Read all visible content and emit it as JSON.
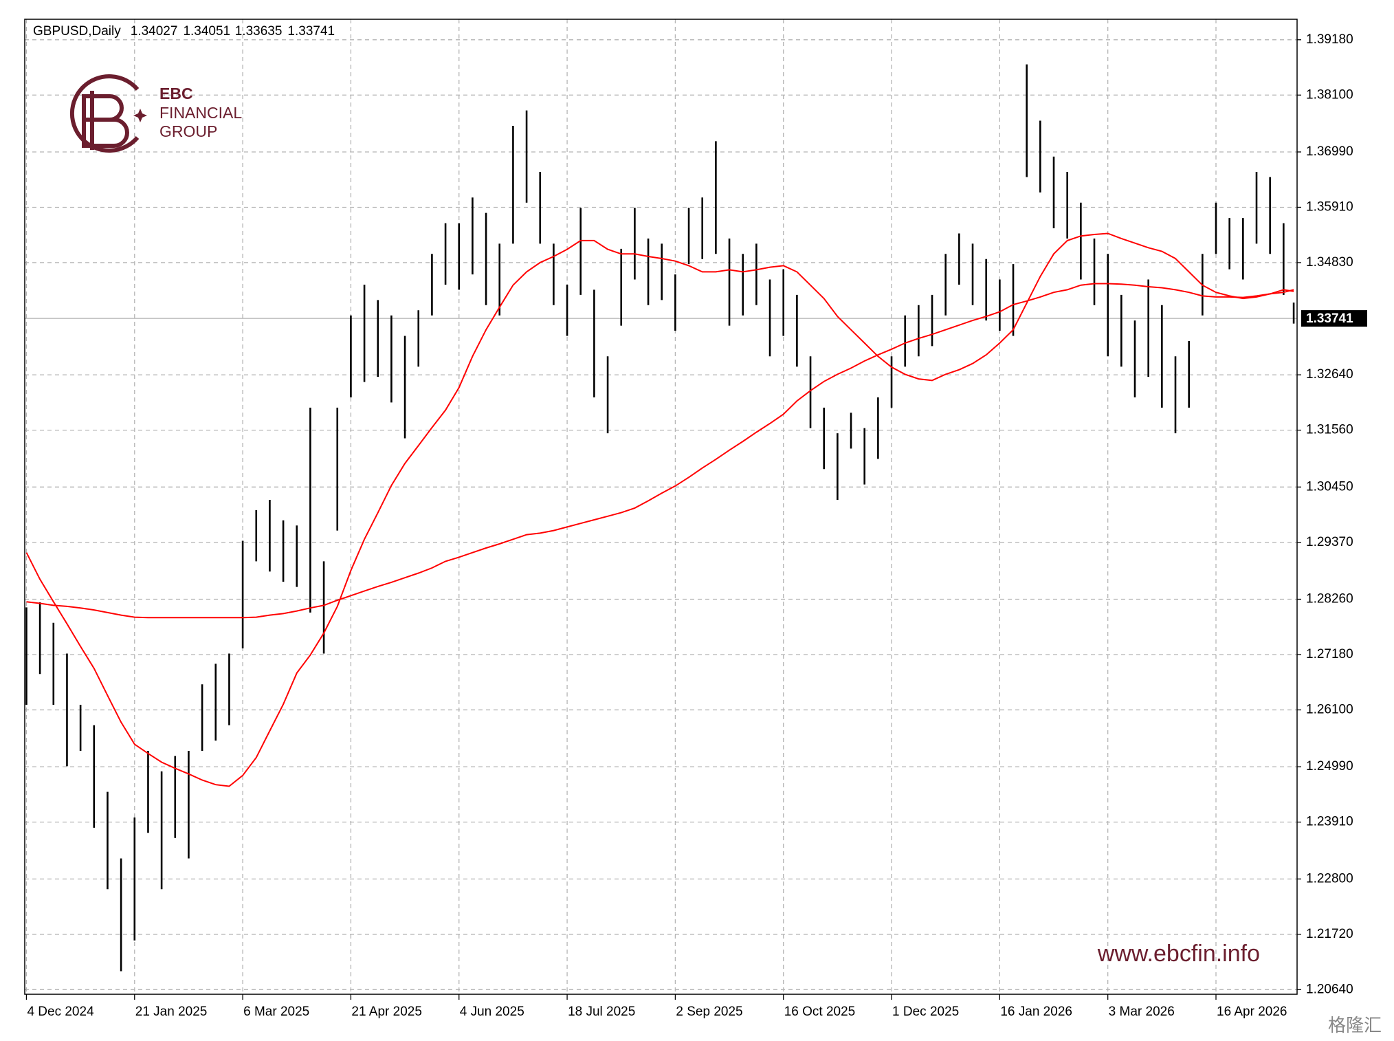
{
  "chart_data": {
    "type": "ohlc",
    "title": "GBPUSD,Daily",
    "last_ohlc": [
      1.34027,
      1.34051,
      1.33635,
      1.33741
    ],
    "last_price": 1.33741,
    "bar_color": "#000000",
    "grid": true,
    "grid_color": "#b4b4b4",
    "price_line_color": "#b4b4b4",
    "xlim": [
      -0.5,
      376
    ],
    "xticks": [
      {
        "value": 0,
        "label": "4 Dec 2024"
      },
      {
        "value": 32,
        "label": "21 Jan 2025"
      },
      {
        "value": 64,
        "label": "6 Mar 2025"
      },
      {
        "value": 96,
        "label": "21 Apr 2025"
      },
      {
        "value": 128,
        "label": "4 Jun 2025"
      },
      {
        "value": 160,
        "label": "18 Jul 2025"
      },
      {
        "value": 192,
        "label": "2 Sep 2025"
      },
      {
        "value": 224,
        "label": "16 Oct 2025"
      },
      {
        "value": 256,
        "label": "1 Dec 2025"
      },
      {
        "value": 288,
        "label": "16 Jan 2026"
      },
      {
        "value": 320,
        "label": "3 Mar 2026"
      },
      {
        "value": 352,
        "label": "16 Apr 2026"
      }
    ],
    "ylim": [
      1.2055,
      1.3958
    ],
    "yticks": [
      {
        "value": 1.3918,
        "label": "1.39180"
      },
      {
        "value": 1.381,
        "label": "1.38100"
      },
      {
        "value": 1.3699,
        "label": "1.36990"
      },
      {
        "value": 1.3591,
        "label": "1.35910"
      },
      {
        "value": 1.3483,
        "label": "1.34830"
      },
      {
        "value": 1.3264,
        "label": "1.32640"
      },
      {
        "value": 1.3156,
        "label": "1.31560"
      },
      {
        "value": 1.3045,
        "label": "1.30450"
      },
      {
        "value": 1.2937,
        "label": "1.29370"
      },
      {
        "value": 1.2826,
        "label": "1.28260"
      },
      {
        "value": 1.2718,
        "label": "1.27180"
      },
      {
        "value": 1.261,
        "label": "1.26100"
      },
      {
        "value": 1.2499,
        "label": "1.24990"
      },
      {
        "value": 1.2391,
        "label": "1.23910"
      },
      {
        "value": 1.228,
        "label": "1.22800"
      },
      {
        "value": 1.2172,
        "label": "1.21720"
      },
      {
        "value": 1.2064,
        "label": "1.20640"
      }
    ],
    "x": [
      0,
      4,
      8,
      12,
      16,
      20,
      24,
      28,
      32,
      36,
      40,
      44,
      48,
      52,
      56,
      60,
      64,
      68,
      72,
      76,
      80,
      84,
      88,
      92,
      96,
      100,
      104,
      108,
      112,
      116,
      120,
      124,
      128,
      132,
      136,
      140,
      144,
      148,
      152,
      156,
      160,
      164,
      168,
      172,
      176,
      180,
      184,
      188,
      192,
      196,
      200,
      204,
      208,
      212,
      216,
      220,
      224,
      228,
      232,
      236,
      240,
      244,
      248,
      252,
      256,
      260,
      264,
      268,
      272,
      276,
      280,
      284,
      288,
      292,
      296,
      300,
      304,
      308,
      312,
      316,
      320,
      324,
      328,
      332,
      336,
      340,
      344,
      348,
      352,
      356,
      360,
      364,
      368,
      372,
      375
    ],
    "high": [
      1.281,
      1.282,
      1.278,
      1.272,
      1.262,
      1.258,
      1.245,
      1.232,
      1.24,
      1.253,
      1.249,
      1.252,
      1.253,
      1.266,
      1.27,
      1.272,
      1.294,
      1.3,
      1.302,
      1.298,
      1.297,
      1.32,
      1.29,
      1.32,
      1.338,
      1.344,
      1.341,
      1.338,
      1.334,
      1.339,
      1.35,
      1.356,
      1.356,
      1.361,
      1.358,
      1.352,
      1.375,
      1.378,
      1.366,
      1.352,
      1.344,
      1.359,
      1.343,
      1.33,
      1.351,
      1.359,
      1.353,
      1.352,
      1.346,
      1.359,
      1.361,
      1.372,
      1.353,
      1.35,
      1.352,
      1.345,
      1.347,
      1.342,
      1.33,
      1.32,
      1.315,
      1.319,
      1.316,
      1.322,
      1.33,
      1.338,
      1.34,
      1.342,
      1.35,
      1.354,
      1.352,
      1.349,
      1.345,
      1.348,
      1.387,
      1.376,
      1.369,
      1.366,
      1.36,
      1.353,
      1.35,
      1.342,
      1.337,
      1.345,
      1.34,
      1.33,
      1.333,
      1.35,
      1.36,
      1.357,
      1.357,
      1.366,
      1.365,
      1.356,
      1.3405
    ],
    "low": [
      1.262,
      1.268,
      1.262,
      1.25,
      1.253,
      1.238,
      1.226,
      1.21,
      1.216,
      1.237,
      1.226,
      1.236,
      1.232,
      1.253,
      1.255,
      1.258,
      1.273,
      1.29,
      1.288,
      1.286,
      1.285,
      1.28,
      1.272,
      1.296,
      1.322,
      1.325,
      1.326,
      1.321,
      1.314,
      1.328,
      1.338,
      1.344,
      1.343,
      1.346,
      1.34,
      1.338,
      1.352,
      1.36,
      1.352,
      1.34,
      1.334,
      1.342,
      1.322,
      1.315,
      1.336,
      1.345,
      1.34,
      1.341,
      1.335,
      1.348,
      1.349,
      1.35,
      1.336,
      1.338,
      1.34,
      1.33,
      1.334,
      1.328,
      1.316,
      1.308,
      1.302,
      1.312,
      1.305,
      1.31,
      1.32,
      1.328,
      1.33,
      1.332,
      1.338,
      1.344,
      1.34,
      1.337,
      1.335,
      1.334,
      1.365,
      1.362,
      1.355,
      1.353,
      1.345,
      1.34,
      1.33,
      1.328,
      1.322,
      1.326,
      1.32,
      1.315,
      1.32,
      1.338,
      1.35,
      1.347,
      1.345,
      1.352,
      1.35,
      1.342,
      1.3364
    ],
    "ma": [
      {
        "color": "#ff0000",
        "values": [
          1.2917,
          1.2865,
          1.2821,
          1.2778,
          1.2734,
          1.2691,
          1.2638,
          1.2586,
          1.2543,
          1.2525,
          1.2508,
          1.2496,
          1.2485,
          1.2473,
          1.2464,
          1.2461,
          1.2482,
          1.2517,
          1.2569,
          1.2621,
          1.2682,
          1.2717,
          1.276,
          1.2812,
          1.2882,
          1.2943,
          1.2995,
          1.3048,
          1.3091,
          1.3126,
          1.3161,
          1.3195,
          1.3239,
          1.33,
          1.3352,
          1.3396,
          1.3439,
          1.3465,
          1.3483,
          1.3495,
          1.3509,
          1.3526,
          1.3526,
          1.3509,
          1.35,
          1.35,
          1.3495,
          1.3491,
          1.3486,
          1.3477,
          1.3465,
          1.3465,
          1.3469,
          1.3465,
          1.3469,
          1.3474,
          1.3477,
          1.3465,
          1.3439,
          1.3413,
          1.3378,
          1.3352,
          1.3326,
          1.33,
          1.3279,
          1.3265,
          1.3256,
          1.3253,
          1.3265,
          1.3274,
          1.3286,
          1.3303,
          1.3326,
          1.3352,
          1.3404,
          1.3456,
          1.35,
          1.3526,
          1.3535,
          1.3538,
          1.354,
          1.353,
          1.3521,
          1.3512,
          1.3505,
          1.3491,
          1.3465,
          1.3439,
          1.3425,
          1.3418,
          1.3413,
          1.3416,
          1.3422,
          1.343,
          1.3427
        ]
      },
      {
        "color": "#ff0000",
        "values": [
          1.2821,
          1.2818,
          1.2814,
          1.2812,
          1.2809,
          1.2805,
          1.28,
          1.2795,
          1.2791,
          1.279,
          1.279,
          1.279,
          1.279,
          1.279,
          1.279,
          1.279,
          1.279,
          1.2791,
          1.2795,
          1.2798,
          1.2803,
          1.2809,
          1.2814,
          1.2824,
          1.2833,
          1.2842,
          1.2851,
          1.2859,
          1.2868,
          1.2877,
          1.2887,
          1.29,
          1.2908,
          1.2917,
          1.2926,
          1.2934,
          1.2943,
          1.2952,
          1.2955,
          1.296,
          1.2967,
          1.2974,
          1.2981,
          1.2988,
          1.2995,
          1.3004,
          1.3018,
          1.3033,
          1.3047,
          1.3064,
          1.3082,
          1.3099,
          1.3117,
          1.3134,
          1.3152,
          1.3169,
          1.3187,
          1.3213,
          1.3233,
          1.3251,
          1.3265,
          1.3277,
          1.3291,
          1.3303,
          1.3314,
          1.3326,
          1.3335,
          1.3343,
          1.3352,
          1.3361,
          1.337,
          1.3378,
          1.3387,
          1.3401,
          1.3408,
          1.3416,
          1.3425,
          1.343,
          1.3439,
          1.3442,
          1.3442,
          1.3441,
          1.3439,
          1.3436,
          1.3434,
          1.343,
          1.3425,
          1.3418,
          1.3416,
          1.3416,
          1.3415,
          1.3418,
          1.3422,
          1.3425,
          1.343
        ]
      }
    ]
  },
  "watermarks": {
    "logo": [
      "EBC",
      "FINANCIAL",
      "GROUP"
    ],
    "url": "www.ebcfin.info",
    "source": "格隆汇"
  }
}
